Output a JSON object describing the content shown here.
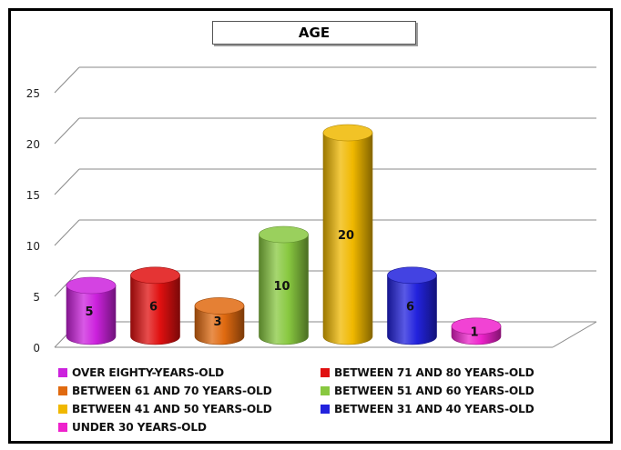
{
  "chart_data": {
    "type": "bar",
    "title": "AGE",
    "xlabel": "",
    "ylabel": "",
    "ylim": [
      0,
      25
    ],
    "yticks": [
      0,
      5,
      10,
      15,
      20,
      25
    ],
    "grid": true,
    "legend_position": "bottom",
    "style": "3d-cylinder",
    "categories": [
      "OVER EIGHTY-YEARS-OLD",
      "BETWEEN 71 AND 80 YEARS-OLD",
      "BETWEEN 61 AND 70 YEARS-OLD",
      "BETWEEN 51 AND 60 YEARS-OLD",
      "BETWEEN 41 AND 50 YEARS-OLD",
      "BETWEEN 31 AND 40 YEARS-OLD",
      "UNDER 30 YEARS-OLD"
    ],
    "values": [
      5,
      6,
      3,
      10,
      20,
      6,
      1
    ],
    "data_labels": [
      "5",
      "6",
      "3",
      "10",
      "20",
      "6",
      "1"
    ],
    "colors": [
      "#cc22dd",
      "#e01010",
      "#e06a10",
      "#88c840",
      "#f0b800",
      "#2222dd",
      "#ee22cc"
    ]
  }
}
